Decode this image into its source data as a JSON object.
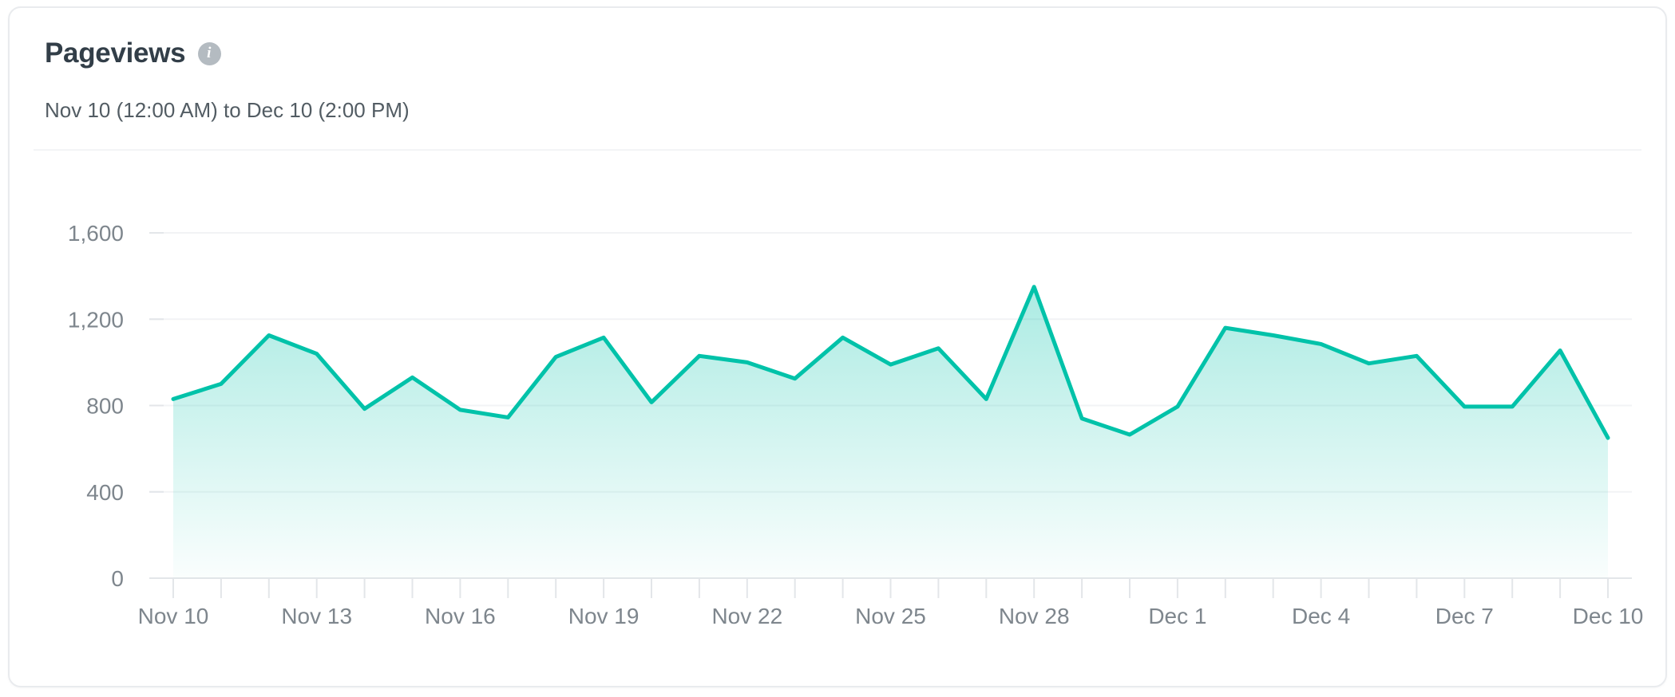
{
  "card": {
    "title": "Pageviews",
    "info_icon": "i",
    "subtitle": "Nov 10 (12:00 AM) to Dec 10 (2:00 PM)"
  },
  "chart_data": {
    "type": "area",
    "title": "Pageviews",
    "date_range": "Nov 10 (12:00 AM) to Dec 10 (2:00 PM)",
    "x": [
      "Nov 10",
      "Nov 11",
      "Nov 12",
      "Nov 13",
      "Nov 14",
      "Nov 15",
      "Nov 16",
      "Nov 17",
      "Nov 18",
      "Nov 19",
      "Nov 20",
      "Nov 21",
      "Nov 22",
      "Nov 23",
      "Nov 24",
      "Nov 25",
      "Nov 26",
      "Nov 27",
      "Nov 28",
      "Nov 29",
      "Nov 30",
      "Dec 1",
      "Dec 2",
      "Dec 3",
      "Dec 4",
      "Dec 5",
      "Dec 6",
      "Dec 7",
      "Dec 8",
      "Dec 9",
      "Dec 10"
    ],
    "values": [
      830,
      900,
      1125,
      1040,
      785,
      930,
      780,
      745,
      1025,
      1115,
      815,
      1030,
      1000,
      925,
      1115,
      990,
      1065,
      830,
      1350,
      740,
      665,
      795,
      1160,
      1125,
      1085,
      995,
      1030,
      795,
      795,
      1055,
      650
    ],
    "x_tick_labels": [
      "Nov 10",
      "Nov 13",
      "Nov 16",
      "Nov 19",
      "Nov 22",
      "Nov 25",
      "Nov 28",
      "Dec 1",
      "Dec 4",
      "Dec 7",
      "Dec 10"
    ],
    "x_tick_label_every": 3,
    "y_ticks": [
      0,
      400,
      800,
      1200,
      1600
    ],
    "y_tick_labels": [
      "0",
      "400",
      "800",
      "1,200",
      "1,600"
    ],
    "ylim": [
      0,
      1600
    ],
    "grid": "horizontal",
    "legend": "none",
    "colors": {
      "line": "#00c2a9",
      "fill_top": "rgba(0,194,169,0.33)",
      "fill_bottom": "rgba(0,194,169,0.02)",
      "gridline": "#f2f3f5",
      "axis": "#e3e6e9",
      "tick_label": "#7e868d",
      "title": "#323e48",
      "subtitle": "#525c63",
      "info_bg": "#b4bbc1",
      "card_border": "#e9ebee"
    }
  }
}
